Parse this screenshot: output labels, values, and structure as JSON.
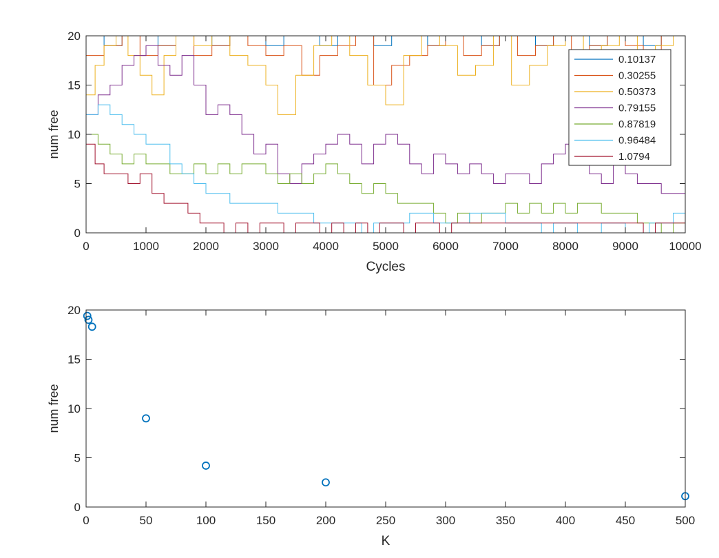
{
  "chart_data": [
    {
      "type": "line",
      "step": true,
      "xlabel": "Cycles",
      "ylabel": "num free",
      "xlim": [
        0,
        10000
      ],
      "ylim": [
        0,
        20
      ],
      "xticks": [
        0,
        1000,
        2000,
        3000,
        4000,
        5000,
        6000,
        7000,
        8000,
        9000,
        10000
      ],
      "yticks": [
        0,
        5,
        10,
        15,
        20
      ],
      "grid": false,
      "legend_position": "top-right",
      "series": [
        {
          "name": "0.10137",
          "color": "#0072BD",
          "x": [
            0,
            300,
            600,
            900,
            1200,
            1500,
            1800,
            2100,
            2400,
            2700,
            3000,
            3300,
            3600,
            3900,
            4200,
            4500,
            4800,
            5100,
            5400,
            5700,
            6000,
            6300,
            6600,
            6900,
            7200,
            7500,
            7800,
            8100,
            8400,
            8700,
            9000,
            9300,
            9600,
            10000
          ],
          "y": [
            20,
            19,
            20,
            20,
            19,
            20,
            20,
            19,
            20,
            20,
            19,
            20,
            20,
            19,
            20,
            20,
            19,
            20,
            20,
            19,
            20,
            20,
            19,
            20,
            20,
            19,
            20,
            20,
            19,
            20,
            20,
            19,
            20,
            20
          ]
        },
        {
          "name": "0.30255",
          "color": "#D95319",
          "x": [
            0,
            300,
            600,
            900,
            1200,
            1500,
            1800,
            2100,
            2400,
            2700,
            3000,
            3300,
            3600,
            3900,
            4200,
            4500,
            4800,
            5100,
            5400,
            5700,
            6000,
            6300,
            6600,
            6900,
            7200,
            7500,
            7800,
            8100,
            8400,
            8700,
            9000,
            9300,
            9600,
            10000
          ],
          "y": [
            18,
            19,
            20,
            18,
            19,
            20,
            18,
            19,
            20,
            19,
            18,
            19,
            16,
            18,
            19,
            20,
            15,
            17,
            18,
            19,
            20,
            18,
            19,
            20,
            18,
            19,
            20,
            18,
            19,
            20,
            19,
            18,
            20,
            19
          ]
        },
        {
          "name": "0.50373",
          "color": "#EDB120",
          "x": [
            0,
            150,
            300,
            500,
            700,
            900,
            1100,
            1300,
            1500,
            1800,
            2100,
            2400,
            2700,
            3000,
            3200,
            3500,
            3800,
            4100,
            4400,
            4700,
            5000,
            5300,
            5600,
            5900,
            6200,
            6500,
            6800,
            7100,
            7400,
            7700,
            8000,
            8300,
            8600,
            8900,
            9200,
            9500,
            9800,
            10000
          ],
          "y": [
            14,
            17,
            19,
            20,
            18,
            16,
            14,
            18,
            20,
            19,
            20,
            18,
            17,
            15,
            12,
            16,
            19,
            20,
            18,
            15,
            13,
            18,
            20,
            19,
            16,
            17,
            20,
            15,
            17,
            19,
            20,
            18,
            19,
            20,
            18,
            19,
            20,
            19
          ]
        },
        {
          "name": "0.79155",
          "color": "#7E2F8E",
          "x": [
            0,
            200,
            400,
            600,
            800,
            1000,
            1200,
            1400,
            1600,
            1800,
            2000,
            2200,
            2400,
            2600,
            2800,
            3000,
            3200,
            3400,
            3600,
            3800,
            4000,
            4200,
            4400,
            4600,
            4800,
            5000,
            5200,
            5400,
            5600,
            5800,
            6000,
            6200,
            6400,
            6600,
            6800,
            7000,
            7200,
            7400,
            7600,
            7800,
            8000,
            8200,
            8400,
            8600,
            8800,
            9000,
            9200,
            9400,
            9600,
            9800,
            10000
          ],
          "y": [
            12,
            14,
            15,
            17,
            18,
            19,
            17,
            16,
            18,
            15,
            12,
            13,
            12,
            10,
            8,
            9,
            6,
            5,
            7,
            8,
            9,
            10,
            9,
            7,
            9,
            10,
            9,
            7,
            6,
            8,
            7,
            6,
            7,
            6,
            5,
            6,
            6,
            5,
            7,
            8,
            9,
            8,
            6,
            5,
            7,
            6,
            5,
            5,
            4,
            4,
            3
          ]
        },
        {
          "name": "0.87819",
          "color": "#77AC30",
          "x": [
            0,
            200,
            400,
            600,
            800,
            1000,
            1200,
            1400,
            1600,
            1800,
            2000,
            2200,
            2400,
            2600,
            2800,
            3000,
            3200,
            3400,
            3600,
            3800,
            4000,
            4200,
            4400,
            4600,
            4800,
            5000,
            5200,
            5400,
            5600,
            5800,
            6000,
            6200,
            6400,
            6600,
            6800,
            7000,
            7200,
            7400,
            7600,
            7800,
            8000,
            8200,
            8400,
            8600,
            8800,
            9000,
            9200,
            9400,
            9600,
            9800,
            10000
          ],
          "y": [
            10,
            9,
            8,
            7,
            8,
            7,
            7,
            6,
            6,
            7,
            6,
            7,
            6,
            7,
            7,
            6,
            5,
            6,
            5,
            6,
            7,
            6,
            5,
            4,
            5,
            4,
            3,
            3,
            3,
            2,
            1,
            2,
            1,
            2,
            2,
            3,
            2,
            3,
            2,
            3,
            2,
            3,
            3,
            2,
            2,
            2,
            1,
            1,
            0,
            1,
            1
          ]
        },
        {
          "name": "0.96484",
          "color": "#4DBEEE",
          "x": [
            0,
            200,
            400,
            600,
            800,
            1000,
            1200,
            1400,
            1600,
            1800,
            2000,
            2200,
            2400,
            2600,
            2800,
            3000,
            3200,
            3400,
            3600,
            3800,
            4000,
            4200,
            4400,
            4600,
            4800,
            5000,
            5200,
            5400,
            5600,
            5800,
            6000,
            6200,
            6400,
            6600,
            6800,
            7000,
            7200,
            7400,
            7600,
            7800,
            8000,
            8200,
            8400,
            8600,
            8800,
            9000,
            9200,
            9400,
            9600,
            9800,
            10000
          ],
          "y": [
            12,
            13,
            12,
            11,
            10,
            9,
            9,
            7,
            6,
            5,
            4,
            4,
            3,
            3,
            3,
            3,
            2,
            2,
            2,
            1,
            1,
            1,
            1,
            0,
            1,
            1,
            1,
            2,
            2,
            1,
            1,
            1,
            2,
            2,
            2,
            1,
            1,
            1,
            0,
            1,
            1,
            0,
            0,
            1,
            1,
            0,
            0,
            1,
            1,
            2,
            2
          ]
        },
        {
          "name": "1.0794",
          "color": "#A2142F",
          "x": [
            0,
            150,
            300,
            500,
            700,
            900,
            1100,
            1300,
            1500,
            1700,
            1900,
            2100,
            2300,
            2500,
            2700,
            2900,
            3100,
            3300,
            3500,
            3700,
            3900,
            4100,
            4300,
            4500,
            4700,
            4900,
            5100,
            5300,
            5500,
            5700,
            5900,
            6100,
            6300,
            6500,
            6700,
            6900,
            7100,
            7300,
            7500,
            7700,
            7900,
            8100,
            8300,
            8500,
            8700,
            8900,
            9100,
            9300,
            9500,
            9700,
            10000
          ],
          "y": [
            9,
            7,
            6,
            6,
            5,
            6,
            4,
            3,
            3,
            2,
            1,
            1,
            0,
            1,
            0,
            1,
            1,
            0,
            1,
            1,
            0,
            1,
            0,
            1,
            0,
            1,
            1,
            0,
            1,
            1,
            0,
            1,
            1,
            1,
            1,
            1,
            1,
            1,
            1,
            1,
            1,
            1,
            1,
            1,
            1,
            1,
            1,
            0,
            1,
            1,
            1
          ]
        }
      ]
    },
    {
      "type": "scatter",
      "xlabel": "K",
      "ylabel": "num free",
      "xlim": [
        0,
        500
      ],
      "ylim": [
        0,
        20
      ],
      "xticks": [
        0,
        50,
        100,
        150,
        200,
        250,
        300,
        350,
        400,
        450,
        500
      ],
      "yticks": [
        0,
        5,
        10,
        15,
        20
      ],
      "grid": false,
      "marker": "circle",
      "color": "#0072BD",
      "x": [
        1,
        2,
        5,
        50,
        100,
        200,
        500
      ],
      "y": [
        19.4,
        19.0,
        18.3,
        9.0,
        4.2,
        2.5,
        1.1
      ]
    }
  ]
}
